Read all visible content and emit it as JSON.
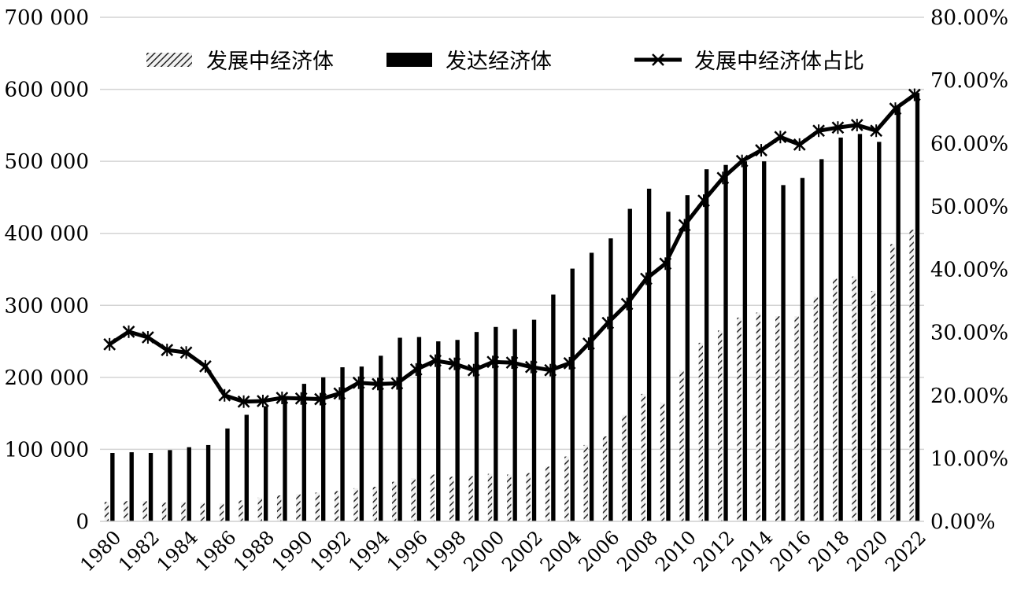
{
  "chart_data": {
    "type": "bar",
    "title": "",
    "xlabel": "",
    "ylabel": "",
    "x": [
      1980,
      1981,
      1982,
      1983,
      1984,
      1985,
      1986,
      1987,
      1988,
      1989,
      1990,
      1991,
      1992,
      1993,
      1994,
      1995,
      1996,
      1997,
      1998,
      1999,
      2000,
      2001,
      2002,
      2003,
      2004,
      2005,
      2006,
      2007,
      2008,
      2009,
      2010,
      2011,
      2012,
      2013,
      2014,
      2015,
      2016,
      2017,
      2018,
      2019,
      2020,
      2021,
      2022
    ],
    "x_tick_labels": [
      "1980",
      "1982",
      "1984",
      "1986",
      "1988",
      "1990",
      "1992",
      "1994",
      "1996",
      "1998",
      "2000",
      "2002",
      "2004",
      "2006",
      "2008",
      "2010",
      "2012",
      "2014",
      "2016",
      "2018",
      "2020",
      "2022"
    ],
    "y_left": {
      "ylim": [
        0,
        700000
      ],
      "tick_labels": [
        "0",
        "100 000",
        "200 000",
        "300 000",
        "400 000",
        "500 000",
        "600 000",
        "700 000"
      ]
    },
    "y_right": {
      "ylim": [
        0,
        80
      ],
      "tick_labels": [
        "0.00%",
        "10.00%",
        "20.00%",
        "30.00%",
        "40.00%",
        "50.00%",
        "60.00%",
        "70.00%",
        "80.00%"
      ]
    },
    "grid": true,
    "legend_position": "top",
    "series": [
      {
        "name": "发展中经济体",
        "type": "bar",
        "axis": "left",
        "pattern": "hatched",
        "color": "#777777",
        "values": [
          27000,
          28000,
          28000,
          26000,
          27000,
          26000,
          25000,
          29000,
          33000,
          36000,
          38000,
          40000,
          42000,
          46000,
          48000,
          55000,
          60000,
          65000,
          62000,
          63000,
          66000,
          65000,
          67000,
          76000,
          90000,
          106000,
          118000,
          148000,
          177000,
          165000,
          210000,
          248000,
          265000,
          283000,
          290000,
          285000,
          285000,
          312000,
          337000,
          340000,
          320000,
          385000,
          405000
        ]
      },
      {
        "name": "发达经济体",
        "type": "bar",
        "axis": "left",
        "color": "#000000",
        "values": [
          95000,
          96000,
          95000,
          99000,
          103000,
          106000,
          129000,
          148000,
          160000,
          172000,
          191000,
          200000,
          214000,
          215000,
          230000,
          255000,
          256000,
          250000,
          252000,
          263000,
          270000,
          267000,
          280000,
          315000,
          351000,
          373000,
          393000,
          434000,
          462000,
          430000,
          453000,
          489000,
          495000,
          500000,
          500000,
          467000,
          477000,
          503000,
          533000,
          538000,
          527000,
          576000,
          595000
        ]
      },
      {
        "name": "发展中经济体占比",
        "type": "line",
        "axis": "right",
        "color": "#000000",
        "marker": "star",
        "values": [
          28.1,
          30.1,
          29.2,
          27.2,
          26.8,
          24.6,
          20.0,
          19.0,
          19.1,
          19.6,
          19.5,
          19.4,
          20.3,
          22.0,
          21.8,
          21.9,
          24.1,
          25.5,
          25.0,
          24.0,
          25.3,
          25.2,
          24.5,
          24.0,
          25.1,
          28.2,
          31.5,
          34.5,
          38.5,
          40.9,
          47.0,
          50.9,
          54.5,
          57.2,
          58.9,
          61.0,
          59.8,
          62.0,
          62.5,
          62.9,
          62.0,
          65.5,
          67.7
        ]
      }
    ]
  }
}
